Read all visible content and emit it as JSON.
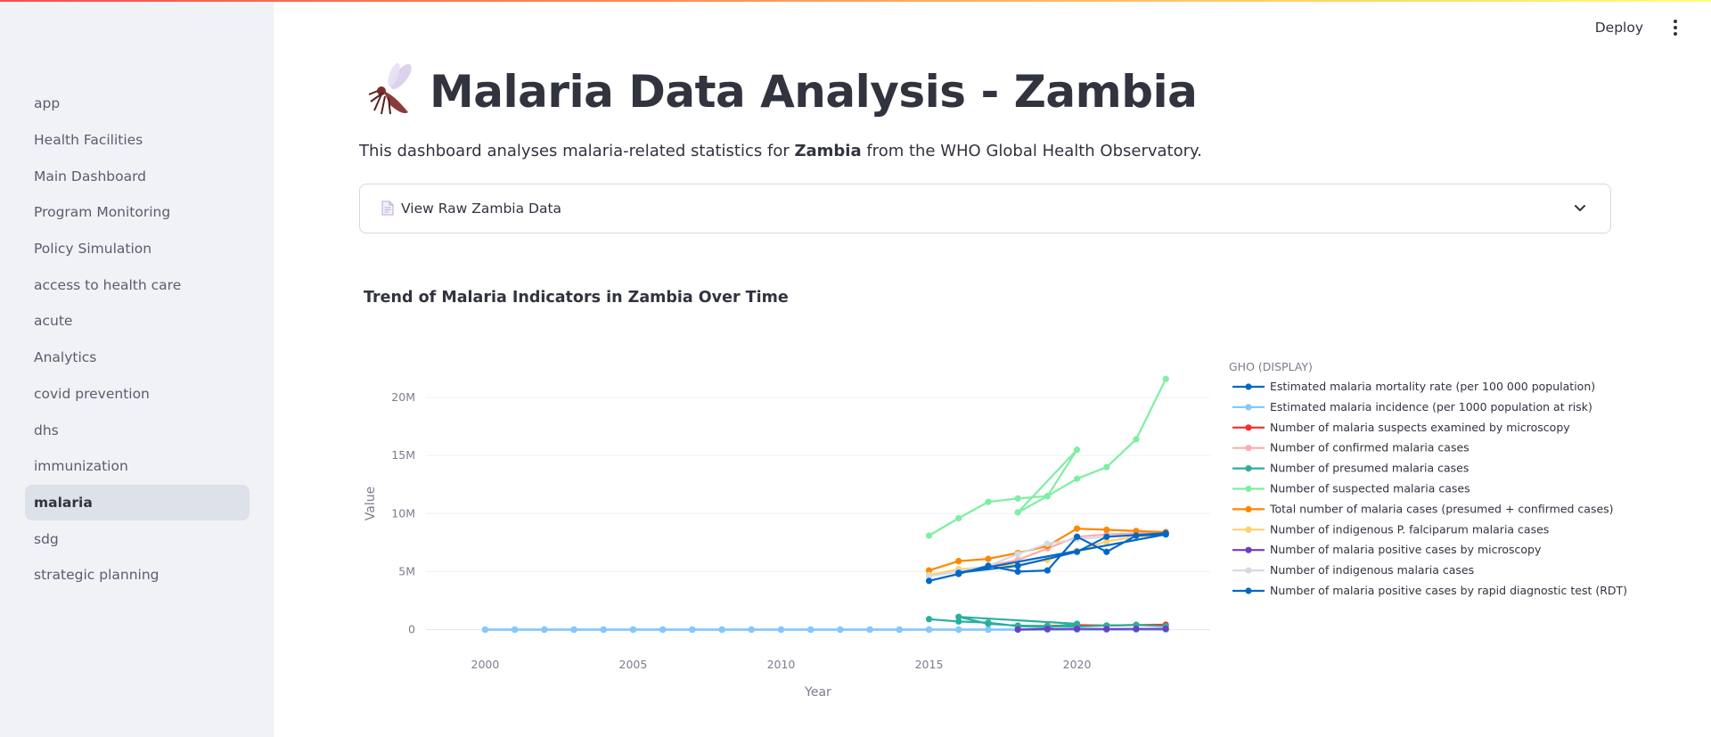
{
  "sidebar": {
    "items": [
      {
        "label": "app",
        "active": false
      },
      {
        "label": "Health Facilities",
        "active": false
      },
      {
        "label": "Main Dashboard",
        "active": false
      },
      {
        "label": "Program Monitoring",
        "active": false
      },
      {
        "label": "Policy Simulation",
        "active": false
      },
      {
        "label": "access to health care",
        "active": false
      },
      {
        "label": "acute",
        "active": false
      },
      {
        "label": "Analytics",
        "active": false
      },
      {
        "label": "covid prevention",
        "active": false
      },
      {
        "label": "dhs",
        "active": false
      },
      {
        "label": "immunization",
        "active": false
      },
      {
        "label": "malaria",
        "active": true
      },
      {
        "label": "sdg",
        "active": false
      },
      {
        "label": "strategic planning",
        "active": false
      }
    ]
  },
  "header": {
    "deploy_label": "Deploy",
    "menu_icon": "kebab-menu-icon"
  },
  "page": {
    "title": "Malaria Data Analysis - Zambia",
    "title_icon": "mosquito-icon",
    "subtitle_pre": "This dashboard analyses malaria-related statistics for ",
    "subtitle_bold": "Zambia",
    "subtitle_post": " from the WHO Global Health Observatory."
  },
  "expander": {
    "label": "View Raw Zambia Data",
    "icon": "document-icon",
    "chevron": "chevron-down-icon"
  },
  "colors": {
    "accent_gradient_start": "#ff4b4b",
    "accent_gradient_end": "#fffd80",
    "sidebar_bg": "#f0f2f6",
    "active_item_bg": "#dde1ea"
  },
  "chart_data": {
    "type": "line",
    "title": "Trend of Malaria Indicators in Zambia Over Time",
    "xlabel": "Year",
    "ylabel": "Value",
    "xlim": [
      1998,
      2024.5
    ],
    "ylim": [
      -500000,
      22000000
    ],
    "x_ticks": [
      2000,
      2005,
      2010,
      2015,
      2020
    ],
    "y_ticks": [
      {
        "v": 0,
        "label": "0"
      },
      {
        "v": 5000000,
        "label": "5M"
      },
      {
        "v": 10000000,
        "label": "10M"
      },
      {
        "v": 15000000,
        "label": "15M"
      },
      {
        "v": 20000000,
        "label": "20M"
      }
    ],
    "grid": true,
    "legend_title": "GHO (DISPLAY)",
    "legend_position": "right",
    "series": [
      {
        "name": "Estimated malaria mortality rate (per 100 000 population)",
        "color": "#0068c9",
        "points": [
          [
            2000,
            80
          ],
          [
            2001,
            80
          ],
          [
            2002,
            78
          ],
          [
            2003,
            75
          ],
          [
            2004,
            72
          ],
          [
            2005,
            70
          ],
          [
            2006,
            68
          ],
          [
            2007,
            65
          ],
          [
            2008,
            60
          ],
          [
            2009,
            58
          ],
          [
            2010,
            55
          ],
          [
            2011,
            52
          ],
          [
            2012,
            50
          ],
          [
            2013,
            48
          ],
          [
            2014,
            46
          ],
          [
            2015,
            45
          ],
          [
            2016,
            44
          ],
          [
            2017,
            43
          ],
          [
            2018,
            42
          ],
          [
            2019,
            41
          ],
          [
            2020,
            42
          ],
          [
            2021,
            41
          ],
          [
            2022,
            40
          ],
          [
            2023,
            40
          ]
        ]
      },
      {
        "name": "Estimated malaria incidence (per 1000 population at risk)",
        "color": "#83c9ff",
        "points": [
          [
            2000,
            380
          ],
          [
            2001,
            375
          ],
          [
            2002,
            370
          ],
          [
            2003,
            365
          ],
          [
            2004,
            360
          ],
          [
            2005,
            355
          ],
          [
            2006,
            350
          ],
          [
            2007,
            345
          ],
          [
            2008,
            340
          ],
          [
            2009,
            330
          ],
          [
            2010,
            320
          ],
          [
            2011,
            310
          ],
          [
            2012,
            300
          ],
          [
            2013,
            290
          ],
          [
            2014,
            280
          ],
          [
            2015,
            270
          ],
          [
            2016,
            265
          ],
          [
            2017,
            260
          ],
          [
            2018,
            255
          ],
          [
            2019,
            250
          ],
          [
            2020,
            250
          ],
          [
            2021,
            248
          ],
          [
            2022,
            245
          ],
          [
            2023,
            245
          ]
        ]
      },
      {
        "name": "Number of malaria suspects examined by microscopy",
        "color": "#ff2b2b",
        "points": [
          [
            2018,
            300000
          ],
          [
            2019,
            320000
          ],
          [
            2020,
            380000
          ],
          [
            2021,
            350000
          ],
          [
            2022,
            400000
          ],
          [
            2023,
            420000
          ]
        ]
      },
      {
        "name": "Number of confirmed malaria cases",
        "color": "#ffabab",
        "points": [
          [
            2016,
            4800000
          ],
          [
            2017,
            5500000
          ],
          [
            2018,
            6000000
          ],
          [
            2019,
            7000000
          ],
          [
            2020,
            8000000
          ],
          [
            2021,
            8200000
          ],
          [
            2022,
            8300000
          ],
          [
            2023,
            8400000
          ]
        ]
      },
      {
        "name": "Number of presumed malaria cases",
        "color": "#29b09d",
        "points": [
          [
            2015,
            900000
          ],
          [
            2016,
            700000
          ],
          [
            2017,
            600000
          ],
          [
            2018,
            300000
          ],
          [
            2019,
            200000
          ],
          [
            2020,
            500000
          ],
          [
            2016,
            1100000
          ],
          [
            2017,
            500000
          ],
          [
            2018,
            350000
          ],
          [
            2019,
            300000
          ],
          [
            2020,
            250000
          ],
          [
            2021,
            350000
          ],
          [
            2022,
            400000
          ],
          [
            2023,
            300000
          ]
        ]
      },
      {
        "name": "Number of suspected malaria cases",
        "color": "#7defa1",
        "points": [
          [
            2015,
            8100000
          ],
          [
            2016,
            9600000
          ],
          [
            2017,
            11000000
          ],
          [
            2018,
            11300000
          ],
          [
            2019,
            11500000
          ],
          [
            2020,
            15500000
          ],
          [
            2018,
            10100000
          ],
          [
            2019,
            11500000
          ],
          [
            2020,
            13000000
          ],
          [
            2021,
            14000000
          ],
          [
            2022,
            16400000
          ],
          [
            2023,
            21600000
          ]
        ]
      },
      {
        "name": "Total number of  malaria cases (presumed + confirmed cases)",
        "color": "#ff8700",
        "points": [
          [
            2015,
            5100000
          ],
          [
            2016,
            5900000
          ],
          [
            2017,
            6100000
          ],
          [
            2018,
            6600000
          ],
          [
            2019,
            7200000
          ],
          [
            2020,
            8700000
          ],
          [
            2021,
            8600000
          ],
          [
            2022,
            8500000
          ],
          [
            2023,
            8400000
          ]
        ]
      },
      {
        "name": "Number of indigenous P. falciparum malaria cases",
        "color": "#ffd16a",
        "points": [
          [
            2015,
            4700000
          ],
          [
            2016,
            5200000
          ],
          [
            2017,
            5400000
          ],
          [
            2018,
            5600000
          ],
          [
            2019,
            6000000
          ],
          [
            2020,
            6800000
          ],
          [
            2021,
            7600000
          ],
          [
            2022,
            8000000
          ],
          [
            2023,
            8200000
          ]
        ]
      },
      {
        "name": "Number of malaria positive cases by microscopy",
        "color": "#6d3fc0",
        "points": [
          [
            2018,
            10000
          ],
          [
            2019,
            50000
          ],
          [
            2020,
            60000
          ],
          [
            2021,
            50000
          ],
          [
            2022,
            60000
          ],
          [
            2023,
            70000
          ]
        ]
      },
      {
        "name": "Number of indigenous malaria cases",
        "color": "#d5dae5",
        "points": [
          [
            2015,
            4600000
          ],
          [
            2016,
            5000000
          ],
          [
            2017,
            5500000
          ],
          [
            2018,
            6500000
          ],
          [
            2019,
            7400000
          ],
          [
            2020,
            7800000
          ],
          [
            2021,
            8000000
          ],
          [
            2022,
            8100000
          ],
          [
            2023,
            8200000
          ]
        ]
      },
      {
        "name": "Number of malaria positive cases by rapid diagnostic test (RDT)",
        "color": "#0068c9",
        "points": [
          [
            2015,
            4200000
          ],
          [
            2016,
            4800000
          ],
          [
            2017,
            5500000
          ],
          [
            2018,
            5000000
          ],
          [
            2019,
            5100000
          ],
          [
            2020,
            8000000
          ],
          [
            2021,
            6700000
          ],
          [
            2022,
            8100000
          ],
          [
            2023,
            8200000
          ],
          [
            2016,
            4900000
          ],
          [
            2018,
            5500000
          ],
          [
            2020,
            6700000
          ],
          [
            2021,
            8000000
          ],
          [
            2023,
            8300000
          ]
        ]
      }
    ]
  }
}
